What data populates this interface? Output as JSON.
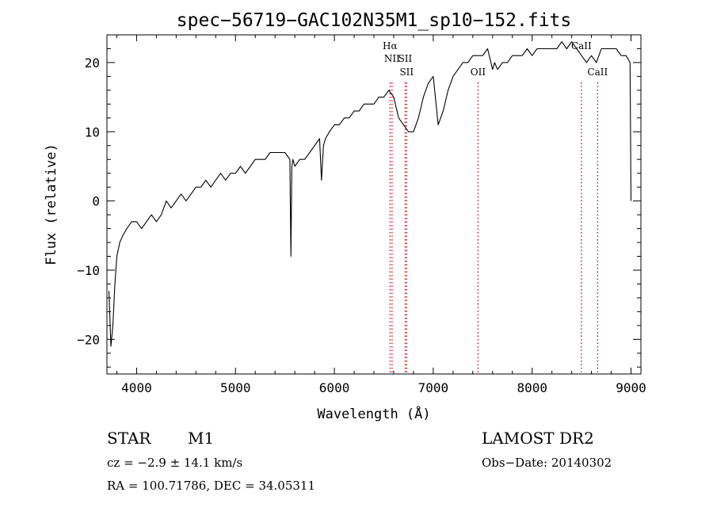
{
  "chart_data": {
    "type": "line",
    "title": "spec−56719−GAC102N35M1_sp10−152.fits",
    "xlabel": "Wavelength (Å)",
    "ylabel": "Flux (relative)",
    "xlim": [
      3700,
      9100
    ],
    "ylim": [
      -25,
      24
    ],
    "x_ticks": [
      4000,
      5000,
      6000,
      7000,
      8000,
      9000
    ],
    "y_ticks": [
      -20,
      -10,
      0,
      10,
      20
    ],
    "y_tick_labels": [
      "−20",
      "−10",
      "0",
      "10",
      "20"
    ],
    "grid": false,
    "line_color": "#000000",
    "marker_color": "#cc0000",
    "series": [
      {
        "x": [
          3720,
          3740,
          3760,
          3780,
          3800,
          3830,
          3860,
          3900,
          3950,
          4000,
          4050,
          4100,
          4150,
          4200,
          4250,
          4300,
          4350,
          4400,
          4450,
          4500,
          4550,
          4600,
          4650,
          4700,
          4750,
          4800,
          4850,
          4900,
          4950,
          5000,
          5050,
          5100,
          5150,
          5200,
          5250,
          5300,
          5350,
          5400,
          5450,
          5500,
          5550,
          5560,
          5570,
          5580,
          5600,
          5650,
          5700,
          5750,
          5800,
          5850,
          5870,
          5890,
          5910,
          5950,
          6000,
          6050,
          6100,
          6150,
          6200,
          6250,
          6300,
          6350,
          6400,
          6450,
          6500,
          6550,
          6600,
          6650,
          6700,
          6750,
          6800,
          6850,
          6900,
          6950,
          7000,
          7050,
          7100,
          7150,
          7200,
          7250,
          7300,
          7350,
          7400,
          7450,
          7500,
          7550,
          7600,
          7620,
          7650,
          7700,
          7750,
          7800,
          7850,
          7900,
          7950,
          8000,
          8050,
          8100,
          8150,
          8200,
          8250,
          8300,
          8350,
          8400,
          8450,
          8500,
          8550,
          8600,
          8650,
          8700,
          8750,
          8800,
          8850,
          8900,
          8950,
          8990,
          9000
        ],
        "y": [
          -13,
          -21,
          -18,
          -12,
          -8,
          -6,
          -5,
          -4,
          -3,
          -3,
          -4,
          -3,
          -2,
          -3,
          -2,
          0,
          -1,
          0,
          1,
          0,
          1,
          2,
          2,
          3,
          2,
          3,
          4,
          3,
          4,
          4,
          5,
          4,
          5,
          6,
          6,
          6,
          7,
          7,
          7,
          7,
          6,
          -8,
          5,
          6,
          5,
          6,
          6,
          7,
          8,
          9,
          3,
          8,
          9,
          10,
          11,
          11,
          12,
          12,
          13,
          13,
          14,
          14,
          14,
          15,
          15,
          16,
          15,
          12,
          11,
          10,
          10,
          12,
          15,
          17,
          18,
          11,
          13,
          16,
          18,
          19,
          20,
          20,
          21,
          21,
          21,
          22,
          19,
          20,
          19,
          20,
          20,
          21,
          21,
          21,
          22,
          21,
          22,
          22,
          22,
          22,
          22,
          23,
          22,
          23,
          22,
          21,
          20,
          21,
          20,
          22,
          22,
          22,
          22,
          21,
          21,
          20,
          0
        ]
      }
    ],
    "line_markers": [
      {
        "x": 6563,
        "label": "Hα",
        "label_row": 0
      },
      {
        "x": 6583,
        "label": "NII",
        "label_row": 1
      },
      {
        "x": 6716,
        "label": "SII",
        "label_row": 1
      },
      {
        "x": 6731,
        "label": "SII",
        "label_row": 2
      },
      {
        "x": 7453,
        "label": "OII",
        "label_row": 2
      },
      {
        "x": 8498,
        "label": "CaII",
        "label_row": 0
      },
      {
        "x": 8662,
        "label": "CaII",
        "label_row": 2
      }
    ]
  },
  "info": {
    "object_class": "STAR",
    "subclass": "M1",
    "survey": "LAMOST DR2",
    "velocity": "cz = −2.9 ± 14.1 km/s",
    "obs_date": "Obs−Date: 20140302",
    "coords": "RA = 100.71786, DEC =  34.05311"
  }
}
